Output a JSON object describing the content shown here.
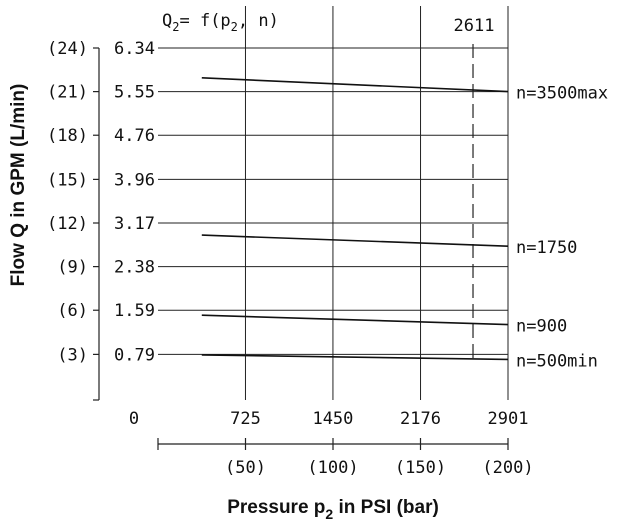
{
  "chart_data": {
    "type": "line",
    "formula": {
      "lhs": "Q",
      "lhs_sub": "2",
      "mid": "= f(p",
      "mid_sub": "2",
      "tail": ", n)"
    },
    "xlabel": {
      "main": "Pressure p",
      "sub": "2",
      "rest": " in PSI (bar)"
    },
    "ylabel": "Flow Q in GPM (L/min)",
    "x_ticks": [
      "0",
      "725",
      "1450",
      "2176",
      "2901"
    ],
    "x_tick_values": [
      0,
      725,
      1450,
      2176,
      2901
    ],
    "x_bar_ticks": [
      "(50)",
      "(100)",
      "(150)",
      "(200)"
    ],
    "y_ticks": [
      "6.34",
      "5.55",
      "4.76",
      "3.96",
      "3.17",
      "2.38",
      "1.59",
      "0.79"
    ],
    "y_tick_values": [
      6.34,
      5.55,
      4.76,
      3.96,
      3.17,
      2.38,
      1.59,
      0.79
    ],
    "y_lmin_ticks": [
      "(24)",
      "(21)",
      "(18)",
      "(15)",
      "(12)",
      "(9)",
      "(6)",
      "(3)"
    ],
    "xlim": [
      0,
      2901
    ],
    "ylim": [
      0,
      6.34
    ],
    "reference_line": {
      "x": 2611,
      "label": "2611"
    },
    "grid": true,
    "series": [
      {
        "name": "n=3500max",
        "x": [
          363,
          2901
        ],
        "y": [
          5.8,
          5.55
        ]
      },
      {
        "name": "n=1750",
        "x": [
          363,
          2901
        ],
        "y": [
          2.95,
          2.75
        ]
      },
      {
        "name": "n=900",
        "x": [
          363,
          2901
        ],
        "y": [
          1.5,
          1.33
        ]
      },
      {
        "name": "n=500min",
        "x": [
          363,
          2901
        ],
        "y": [
          0.78,
          0.7
        ]
      }
    ]
  }
}
